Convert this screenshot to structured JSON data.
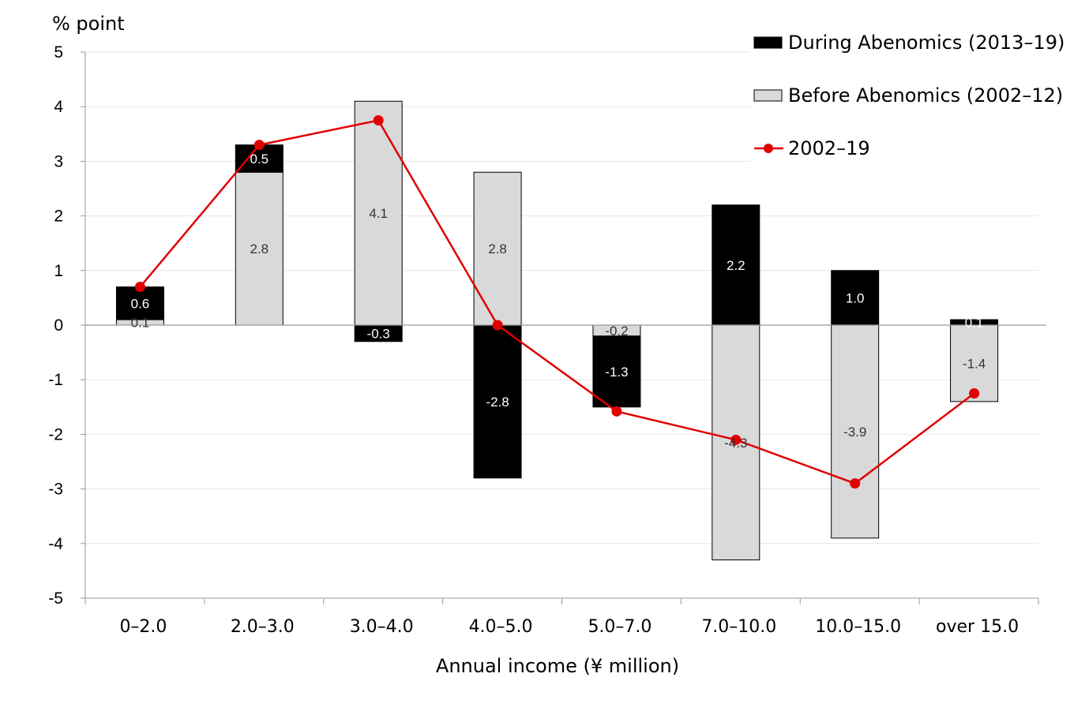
{
  "chart_data": {
    "type": "bar",
    "stacked": true,
    "ylabel": "% point",
    "xlabel": "Annual income (¥ million)",
    "ylim": [
      -5,
      5
    ],
    "yticks": [
      5,
      4,
      3,
      2,
      1,
      0,
      -1,
      -2,
      -3,
      -4,
      -5
    ],
    "categories": [
      "0–2.0",
      "2.0–3.0",
      "3.0–4.0",
      "4.0–5.0",
      "5.0–7.0",
      "7.0–10.0",
      "10.0–15.0",
      "over 15.0"
    ],
    "series": [
      {
        "name": "Before Abenomics (2002–12)",
        "kind": "bar",
        "color": "#d9d9d9",
        "values": [
          0.1,
          2.8,
          4.1,
          2.8,
          -0.2,
          -4.3,
          -3.9,
          -1.4
        ],
        "labels": [
          "0.1",
          "2.8",
          "4.1",
          "2.8",
          "-0.2",
          "-4.3",
          "-3.9",
          "-1.4"
        ]
      },
      {
        "name": "During Abenomics (2013–19)",
        "kind": "bar",
        "color": "#000000",
        "values": [
          0.6,
          0.5,
          -0.3,
          -2.8,
          -1.3,
          2.2,
          1.0,
          0.1
        ],
        "labels": [
          "0.6",
          "0.5",
          "-0.3",
          "-2.8",
          "-1.3",
          "2.2",
          "1.0",
          "0.1"
        ]
      },
      {
        "name": "2002–19",
        "kind": "line",
        "color": "#e00000",
        "values": [
          0.7,
          3.3,
          3.75,
          0.0,
          -1.58,
          -2.1,
          -2.9,
          -1.25
        ]
      }
    ],
    "legend": {
      "position": "top-right",
      "items": [
        {
          "label": "During Abenomics (2013–19)",
          "symbol": "black-box"
        },
        {
          "label": "Before Abenomics (2002–12)",
          "symbol": "gray-box"
        },
        {
          "label": "2002–19",
          "symbol": "red-line-marker"
        }
      ]
    },
    "grid": true
  }
}
